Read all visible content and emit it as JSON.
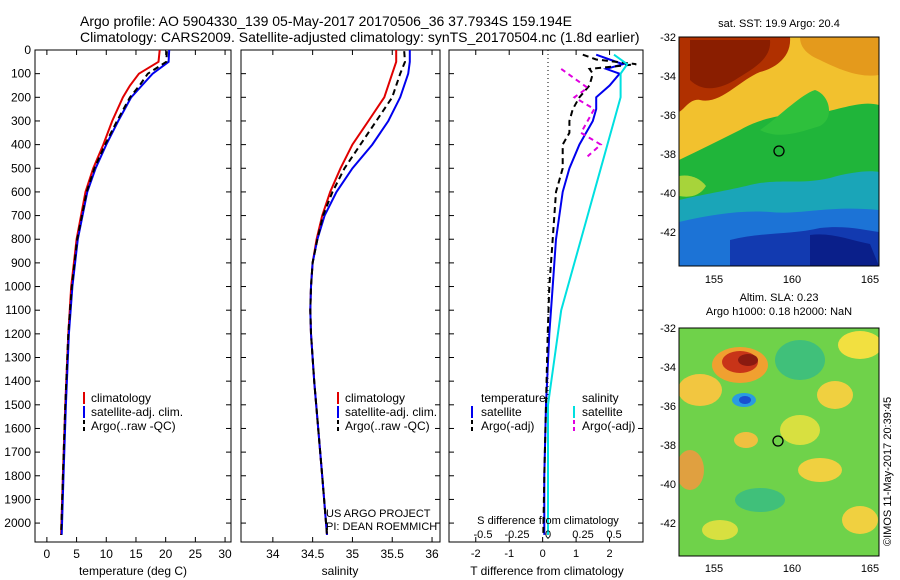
{
  "header": {
    "line1": "Argo profile: AO 5904330_139 05-May-2017 20170506_36 37.7934S 159.194E",
    "line2": "Climatology: CARS2009. Satellite-adjusted climatology: synTS_20170504.nc (1.8d earlier)"
  },
  "colors": {
    "climatology": "#e00000",
    "satellite": "#0000ee",
    "argo": "#000000",
    "salinity_satellite": "#00e0e0",
    "salinity_argo": "#e000e0"
  },
  "chart_data": [
    {
      "type": "line",
      "panel": "temperature",
      "xlabel": "temperature (deg C)",
      "ylabel": "",
      "xlim": [
        -2,
        31
      ],
      "ylim": [
        2080,
        0
      ],
      "xticks": [
        0,
        5,
        10,
        15,
        20,
        25,
        30
      ],
      "yticks": [
        0,
        100,
        200,
        300,
        400,
        500,
        600,
        700,
        800,
        900,
        1000,
        1100,
        1200,
        1300,
        1400,
        1500,
        1600,
        1700,
        1800,
        1900,
        2000
      ],
      "legend": [
        "climatology",
        "satellite-adj. clim.",
        "Argo(..raw -QC)"
      ],
      "series": [
        {
          "name": "climatology",
          "depth": [
            0,
            50,
            100,
            150,
            200,
            300,
            400,
            500,
            600,
            800,
            1000,
            1200,
            1500,
            1800,
            2050
          ],
          "values": [
            19.0,
            18.8,
            15.5,
            14.0,
            12.8,
            11.0,
            9.5,
            7.8,
            6.5,
            5.0,
            4.1,
            3.6,
            3.1,
            2.7,
            2.4
          ]
        },
        {
          "name": "satellite-adj. clim.",
          "depth": [
            0,
            50,
            100,
            150,
            200,
            300,
            400,
            500,
            600,
            800,
            1000,
            1200,
            1500,
            1800,
            2050
          ],
          "values": [
            20.6,
            20.5,
            17.8,
            16.0,
            14.2,
            12.0,
            10.0,
            8.2,
            6.8,
            5.2,
            4.3,
            3.7,
            3.2,
            2.8,
            2.5
          ]
        },
        {
          "name": "Argo(..raw -QC)",
          "depth": [
            5,
            50,
            100,
            150,
            200,
            300,
            400,
            500,
            600,
            800,
            1000,
            1200,
            1500,
            1800,
            2050
          ],
          "values": [
            20.2,
            20.1,
            17.0,
            15.6,
            14.0,
            11.8,
            9.8,
            8.0,
            6.7,
            5.1,
            4.2,
            3.6,
            3.1,
            2.7,
            2.4
          ]
        }
      ]
    },
    {
      "type": "line",
      "panel": "salinity",
      "xlabel": "salinity",
      "ylabel": "",
      "xlim": [
        33.6,
        36.1
      ],
      "ylim": [
        2080,
        0
      ],
      "xticks": [
        34,
        34.5,
        35,
        35.5,
        36
      ],
      "legend": [
        "climatology",
        "satellite-adj. clim.",
        "Argo(..raw -QC)"
      ],
      "series": [
        {
          "name": "climatology",
          "depth": [
            0,
            50,
            100,
            200,
            300,
            400,
            500,
            600,
            700,
            800,
            900,
            1000,
            1100,
            1200,
            1400,
            1600,
            1800,
            2050
          ],
          "values": [
            35.55,
            35.55,
            35.5,
            35.4,
            35.2,
            35.0,
            34.85,
            34.72,
            34.62,
            34.55,
            34.5,
            34.48,
            34.47,
            34.48,
            34.52,
            34.57,
            34.62,
            34.68
          ]
        },
        {
          "name": "satellite-adj. clim.",
          "depth": [
            0,
            50,
            100,
            200,
            300,
            400,
            500,
            600,
            700,
            800,
            900,
            1000,
            1100,
            1200,
            1400,
            1600,
            1800,
            2050
          ],
          "values": [
            35.72,
            35.72,
            35.7,
            35.6,
            35.45,
            35.25,
            35.0,
            34.8,
            34.65,
            34.56,
            34.5,
            34.48,
            34.47,
            34.48,
            34.52,
            34.57,
            34.62,
            34.68
          ]
        },
        {
          "name": "Argo(..raw -QC)",
          "depth": [
            5,
            50,
            100,
            200,
            300,
            400,
            500,
            600,
            700,
            800,
            900,
            1000,
            1100,
            1200,
            1400,
            1600,
            1800,
            2050
          ],
          "values": [
            35.65,
            35.66,
            35.6,
            35.5,
            35.3,
            35.1,
            34.9,
            34.75,
            34.63,
            34.56,
            34.5,
            34.48,
            34.47,
            34.48,
            34.52,
            34.57,
            34.62,
            34.68
          ]
        }
      ],
      "annotation": [
        "US ARGO PROJECT",
        "PI: DEAN ROEMMICH"
      ]
    },
    {
      "type": "line",
      "panel": "difference",
      "xlabel": "T difference from climatology",
      "top_label": "S difference from climatology",
      "xlim": [
        -2.8,
        3.0
      ],
      "ylim": [
        2080,
        0
      ],
      "xticks": [
        -2,
        -1,
        0,
        1,
        2
      ],
      "s_ticks": [
        "-0.5",
        "-0.25",
        "0",
        "0.25",
        "0.5"
      ],
      "legend_title_t": "temperature",
      "legend_title_s": "salinity",
      "legend": [
        "satellite",
        "Argo(-adj)",
        "satellite",
        "Argo(-adj)"
      ],
      "series": [
        {
          "name": "temperature satellite",
          "depth": [
            20,
            40,
            60,
            80,
            100,
            150,
            200,
            250,
            300,
            350,
            400,
            500,
            600,
            800,
            1000,
            1200,
            1500,
            1800,
            2050
          ],
          "values": [
            1.6,
            2.0,
            2.4,
            1.9,
            2.3,
            2.0,
            1.6,
            1.6,
            1.5,
            1.3,
            1.1,
            0.8,
            0.6,
            0.4,
            0.3,
            0.2,
            0.1,
            0.05,
            0.05
          ]
        },
        {
          "name": "temperature Argo(-adj)",
          "depth": [
            20,
            40,
            60,
            80,
            100,
            150,
            200,
            250,
            300,
            350,
            400,
            500,
            600,
            800,
            1000,
            1200,
            1500,
            1800,
            2050
          ],
          "values": [
            1.2,
            1.6,
            2.8,
            1.4,
            1.5,
            1.4,
            1.1,
            0.9,
            0.8,
            0.8,
            0.6,
            0.6,
            0.4,
            0.3,
            0.2,
            0.15,
            0.1,
            0.05,
            0.02
          ]
        },
        {
          "name": "salinity satellite",
          "depth": [
            20,
            60,
            100,
            200,
            300,
            400,
            500,
            700,
            900,
            1100,
            1300,
            1500,
            1800,
            2050
          ],
          "values": [
            0.5,
            0.6,
            0.55,
            0.55,
            0.5,
            0.45,
            0.4,
            0.3,
            0.2,
            0.1,
            0.05,
            0.0,
            0.0,
            0.0
          ]
        },
        {
          "name": "salinity Argo(-adj)",
          "depth": [
            80,
            120,
            160,
            200,
            250,
            300,
            350,
            400,
            450
          ],
          "values": [
            0.1,
            0.2,
            0.3,
            0.2,
            0.35,
            0.3,
            0.25,
            0.4,
            0.3
          ]
        }
      ]
    }
  ],
  "maps": [
    {
      "title": "sat. SST: 19.9 Argo: 20.4",
      "xticks": [
        "155",
        "160",
        "165"
      ],
      "yticks": [
        "-32",
        "-34",
        "-36",
        "-38",
        "-40",
        "-42"
      ]
    },
    {
      "title1": "Altim. SLA: 0.23",
      "title2": "Argo h1000: 0.18 h2000: NaN",
      "xticks": [
        "155",
        "160",
        "165"
      ],
      "yticks": [
        "-32",
        "-34",
        "-36",
        "-38",
        "-40",
        "-42"
      ]
    }
  ],
  "credit": "©IMOS 11-May-2017 20:39:45"
}
